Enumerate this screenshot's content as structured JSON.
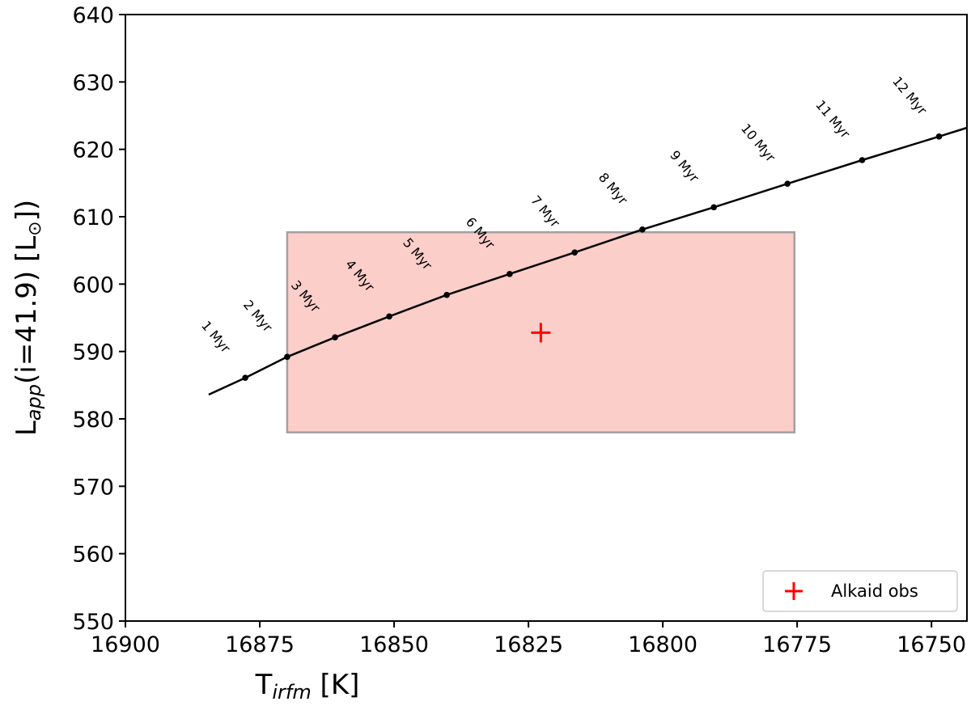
{
  "chart_data": {
    "type": "line",
    "xlabel": [
      "T",
      "irfm",
      " [K]"
    ],
    "ylabel": [
      "L",
      "app",
      "(i=41.9) [L",
      "⊙",
      "])"
    ],
    "xlim": [
      16900,
      16743.4
    ],
    "ylim": [
      550,
      640
    ],
    "xticks": [
      16900,
      16875,
      16850,
      16825,
      16800,
      16775,
      16750
    ],
    "yticks": [
      550,
      560,
      570,
      580,
      590,
      600,
      610,
      620,
      630,
      640
    ],
    "track": {
      "color": "#000000",
      "x": [
        16884.5,
        16877.7,
        16869.9,
        16861.0,
        16850.9,
        16840.2,
        16828.5,
        16816.4,
        16803.8,
        16790.5,
        16776.8,
        16762.9,
        16748.6,
        16743.4
      ],
      "y": [
        583.6,
        586.1,
        589.2,
        592.1,
        595.2,
        598.4,
        601.5,
        604.7,
        608.1,
        611.4,
        614.9,
        618.4,
        621.9,
        623.2
      ]
    },
    "ages": {
      "color": "#000000",
      "x": [
        16877.7,
        16869.9,
        16861.0,
        16850.9,
        16840.2,
        16828.5,
        16816.4,
        16803.8,
        16790.5,
        16776.8,
        16762.9,
        16748.6
      ],
      "y": [
        586.1,
        589.2,
        592.1,
        595.2,
        598.4,
        601.5,
        604.7,
        608.1,
        611.4,
        614.9,
        618.4,
        621.9
      ],
      "labels": [
        "1 Myr",
        "2 Myr",
        "3 Myr",
        "4 Myr",
        "5 Myr",
        "6 Myr",
        "7 Myr",
        "8 Myr",
        "9 Myr",
        "10 Myr",
        "11 Myr",
        "12 Myr"
      ]
    },
    "box": {
      "x": [
        16869.9,
        16775.5
      ],
      "y": [
        578.0,
        607.7
      ],
      "color": "#f7a59c",
      "edgecolor": "#a0a0a0"
    },
    "observation": {
      "name": "Alkaid obs",
      "x": 16822.7,
      "y": 592.8,
      "color": "#ff0000"
    },
    "legend": "lower right"
  }
}
